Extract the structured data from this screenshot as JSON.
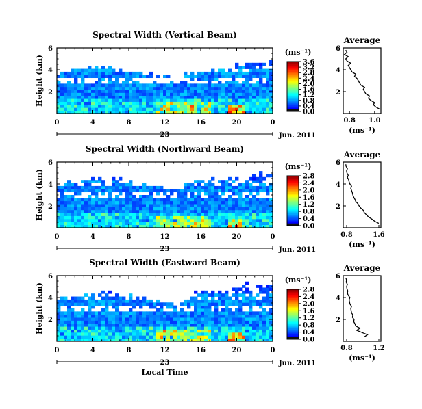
{
  "chart_data": [
    {
      "type": "heatmap",
      "title": "Spectral Width (Vertical Beam)",
      "ylabel": "Height (km)",
      "ylim": [
        0,
        6
      ],
      "yticks": [
        "2",
        "4",
        "6"
      ],
      "xticks": [
        "0",
        "4",
        "8",
        "12",
        "16",
        "20",
        "0"
      ],
      "xlim": [
        0,
        24
      ],
      "day_label": "23",
      "date_label": "Jun. 2011",
      "colorbar": {
        "unit": "(ms⁻¹)",
        "range": [
          0,
          3.6
        ],
        "ticks": [
          "0.0",
          "0.4",
          "0.8",
          "1.2",
          "1.6",
          "2.0",
          "2.4",
          "2.8",
          "3.2",
          "3.6"
        ]
      },
      "average": {
        "title": "Average",
        "xlabel": "(ms⁻¹)",
        "xlim": [
          0.75,
          1.05
        ],
        "xticks": [
          "0.8",
          "1.0"
        ],
        "yticks": [
          "2",
          "4",
          "6"
        ],
        "height": [
          0.4,
          0.6,
          0.8,
          1.0,
          1.2,
          1.4,
          1.6,
          1.8,
          2.0,
          2.2,
          2.4,
          2.6,
          2.8,
          3.0,
          3.2,
          3.4,
          3.6,
          3.8,
          4.0,
          4.2,
          4.4,
          4.6,
          4.8,
          5.0,
          5.2,
          5.4,
          5.6,
          5.8
        ],
        "width": [
          1.04,
          1.01,
          0.99,
          1.0,
          0.97,
          0.95,
          0.96,
          0.93,
          0.92,
          0.91,
          0.92,
          0.89,
          0.88,
          0.87,
          0.86,
          0.84,
          0.85,
          0.82,
          0.81,
          0.8,
          0.79,
          0.81,
          0.78,
          0.77,
          0.79,
          0.76,
          0.78,
          0.77
        ]
      }
    },
    {
      "type": "heatmap",
      "title": "Spectral Width (Northward Beam)",
      "ylabel": "Height (km)",
      "ylim": [
        0,
        6
      ],
      "yticks": [
        "2",
        "4",
        "6"
      ],
      "xticks": [
        "0",
        "4",
        "8",
        "12",
        "16",
        "20",
        "0"
      ],
      "xlim": [
        0,
        24
      ],
      "day_label": "23",
      "date_label": "Jun. 2011",
      "colorbar": {
        "unit": "(ms⁻¹)",
        "range": [
          0,
          2.8
        ],
        "ticks": [
          "0.0",
          "0.4",
          "0.8",
          "1.2",
          "1.6",
          "2.0",
          "2.4",
          "2.8"
        ]
      },
      "average": {
        "title": "Average",
        "xlabel": "(ms⁻¹)",
        "xlim": [
          0.7,
          1.6
        ],
        "xticks": [
          "0.8",
          "1.6"
        ],
        "yticks": [
          "2",
          "4",
          "6"
        ],
        "height": [
          0.4,
          0.6,
          0.8,
          1.0,
          1.2,
          1.4,
          1.6,
          1.8,
          2.0,
          2.2,
          2.4,
          2.6,
          2.8,
          3.0,
          3.2,
          3.4,
          3.6,
          3.8,
          4.0,
          4.2,
          4.4,
          4.6,
          4.8,
          5.0,
          5.2,
          5.4,
          5.6,
          5.8
        ],
        "width": [
          1.55,
          1.45,
          1.38,
          1.3,
          1.25,
          1.2,
          1.18,
          1.12,
          1.08,
          1.05,
          1.0,
          0.98,
          0.95,
          0.93,
          0.92,
          0.9,
          0.88,
          0.9,
          0.86,
          0.84,
          0.83,
          0.8,
          0.82,
          0.79,
          0.78,
          0.8,
          0.77,
          0.76
        ]
      }
    },
    {
      "type": "heatmap",
      "title": "Spectral Width (Eastward Beam)",
      "ylabel": "Height (km)",
      "ylim": [
        0,
        6
      ],
      "yticks": [
        "2",
        "4",
        "6"
      ],
      "xticks": [
        "0",
        "4",
        "8",
        "12",
        "16",
        "20",
        "0"
      ],
      "xlim": [
        0,
        24
      ],
      "day_label": "23",
      "date_label": "Jun. 2011",
      "xlabel": "Local Time",
      "colorbar": {
        "unit": "(ms⁻¹)",
        "range": [
          0,
          2.8
        ],
        "ticks": [
          "0.0",
          "0.4",
          "0.8",
          "1.2",
          "1.6",
          "2.0",
          "2.4",
          "2.8"
        ]
      },
      "average": {
        "title": "Average",
        "xlabel": "(ms⁻¹)",
        "xlim": [
          0.7,
          1.6
        ],
        "xticks": [
          "0.8",
          "1.2"
        ],
        "yticks": [
          "2",
          "4",
          "6"
        ],
        "height": [
          0.4,
          0.6,
          0.8,
          1.0,
          1.2,
          1.4,
          1.6,
          1.8,
          2.0,
          2.2,
          2.4,
          2.6,
          2.8,
          3.0,
          3.2,
          3.4,
          3.6,
          3.8,
          4.0,
          4.2,
          4.4,
          4.6,
          4.8,
          5.0,
          5.2,
          5.4,
          5.6,
          5.8
        ],
        "width": [
          1.2,
          1.28,
          1.15,
          1.02,
          1.1,
          1.0,
          0.98,
          0.95,
          0.96,
          0.92,
          0.93,
          0.9,
          0.89,
          0.88,
          0.9,
          0.86,
          0.85,
          0.84,
          0.86,
          0.82,
          0.8,
          0.81,
          0.79,
          0.78,
          0.8,
          0.77,
          0.78,
          0.76
        ]
      }
    }
  ]
}
